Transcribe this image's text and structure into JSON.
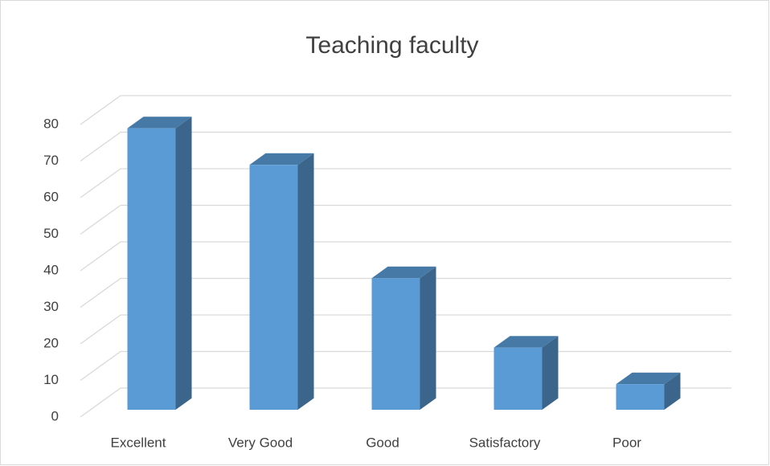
{
  "chart_data": {
    "type": "bar3d",
    "title": "Teaching faculty",
    "categories": [
      "Excellent",
      "Very Good",
      "Good",
      "Satisfactory",
      "Poor"
    ],
    "values": [
      77,
      67,
      36,
      17,
      7
    ],
    "color": "#5b9bd5",
    "ylim": [
      0,
      80
    ],
    "yticks": [
      0,
      10,
      20,
      30,
      40,
      50,
      60,
      70,
      80
    ],
    "grid": true
  }
}
